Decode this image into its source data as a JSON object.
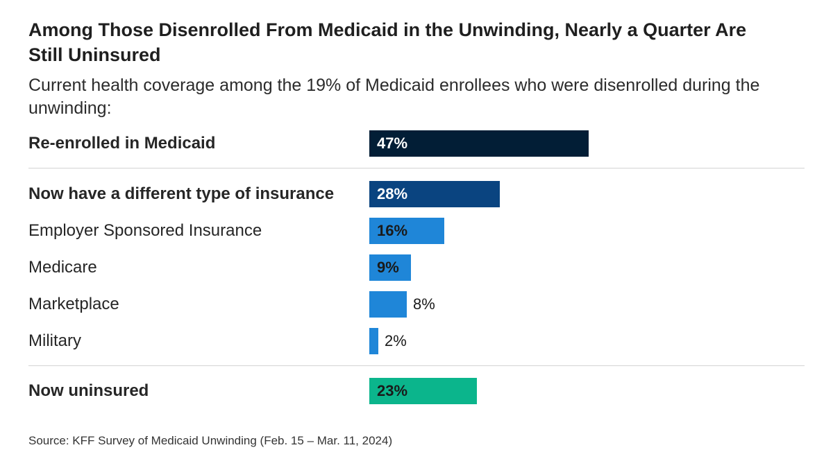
{
  "title": "Among Those Disenrolled From Medicaid in the Unwinding, Nearly a Quarter Are Still Uninsured",
  "subtitle": "Current health coverage among the 19% of Medicaid enrollees who were disenrolled during the unwinding:",
  "source": "Source: KFF Survey of Medicaid Unwinding (Feb. 15 – Mar. 11, 2024)",
  "colors": {
    "dark_navy": "#021e36",
    "navy": "#0a4480",
    "blue": "#1f86d8",
    "green": "#0bb58c"
  },
  "chart_data": {
    "type": "bar",
    "orientation": "horizontal",
    "title": "Among Those Disenrolled From Medicaid in the Unwinding, Nearly a Quarter Are Still Uninsured",
    "subtitle": "Current health coverage among the 19% of Medicaid enrollees who were disenrolled during the unwinding:",
    "xlim": [
      0,
      100
    ],
    "unit": "%",
    "categories": [
      "Re-enrolled in Medicaid",
      "Now have a different type of insurance",
      "Employer Sponsored Insurance",
      "Medicare",
      "Marketplace",
      "Military",
      "Now uninsured"
    ],
    "values": [
      47,
      28,
      16,
      9,
      8,
      2,
      23
    ],
    "value_labels": [
      "47%",
      "28%",
      "16%",
      "9%",
      "8%",
      "2%",
      "23%"
    ],
    "bold_categories": [
      true,
      true,
      false,
      false,
      false,
      false,
      true
    ],
    "bar_colors": [
      "#021e36",
      "#0a4480",
      "#1f86d8",
      "#1f86d8",
      "#1f86d8",
      "#1f86d8",
      "#0bb58c"
    ],
    "label_colors": [
      "#ffffff",
      "#ffffff",
      "#1a1a1a",
      "#1a1a1a",
      "#1a1a1a",
      "#1a1a1a",
      "#1a1a1a"
    ],
    "grid": false,
    "legend": "none",
    "source": "Source: KFF Survey of Medicaid Unwinding (Feb. 15 – Mar. 11, 2024)"
  }
}
